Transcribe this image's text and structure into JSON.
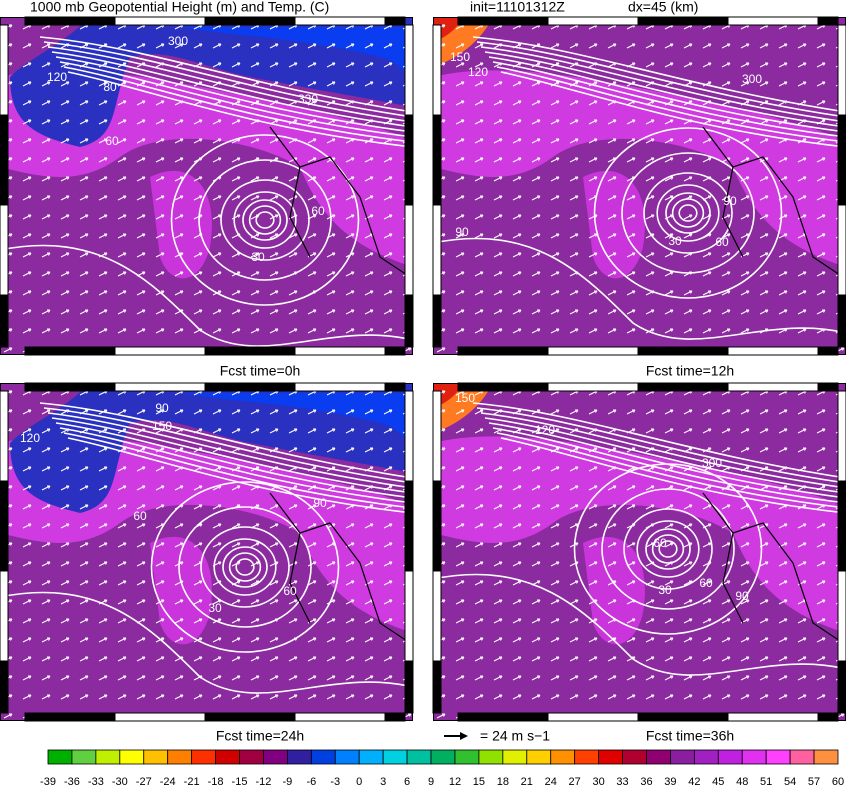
{
  "header": {
    "title": "1000 mb Geopotential Height (m) and Temp. (C)",
    "init": "init=11101312Z",
    "dx": "dx=45 (km)"
  },
  "panels": [
    {
      "label": "Fcst time=0h",
      "contour_labels": [
        "120",
        "80",
        "60",
        "300",
        "330",
        "60",
        "30"
      ]
    },
    {
      "label": "Fcst time=12h",
      "contour_labels": [
        "150",
        "120",
        "300",
        "90",
        "90",
        "30",
        "60"
      ]
    },
    {
      "label": "Fcst time=24h",
      "contour_labels": [
        "120",
        "90",
        "150",
        "60",
        "90",
        "60",
        "30"
      ]
    },
    {
      "label": "Fcst time=36h",
      "contour_labels": [
        "150",
        "120",
        "300",
        "60",
        "30",
        "60",
        "90"
      ]
    }
  ],
  "vector_legend": {
    "label": "= 24 m s−1"
  },
  "colorbar": {
    "ticks": [
      -39,
      -36,
      -33,
      -30,
      -27,
      -24,
      -21,
      -18,
      -15,
      -12,
      -9,
      -6,
      -3,
      0,
      3,
      6,
      9,
      12,
      15,
      18,
      21,
      24,
      27,
      30,
      33,
      36,
      39,
      42,
      45,
      48,
      51,
      54,
      57,
      60
    ],
    "colors": [
      "#00b000",
      "#60d040",
      "#c0f000",
      "#ffff00",
      "#ffc000",
      "#ff8000",
      "#ff3000",
      "#d00000",
      "#a00040",
      "#800080",
      "#3020a0",
      "#0040e0",
      "#0080ff",
      "#00b0ff",
      "#00d0e0",
      "#00c0a0",
      "#00b060",
      "#30c030",
      "#90e000",
      "#e0f000",
      "#ffd000",
      "#ff9000",
      "#ff4000",
      "#e00000",
      "#b00030",
      "#900070",
      "#8a1ea0",
      "#a020c0",
      "#c020e0",
      "#e030f0",
      "#ff40ff",
      "#ff60a0",
      "#ff9040"
    ]
  }
}
